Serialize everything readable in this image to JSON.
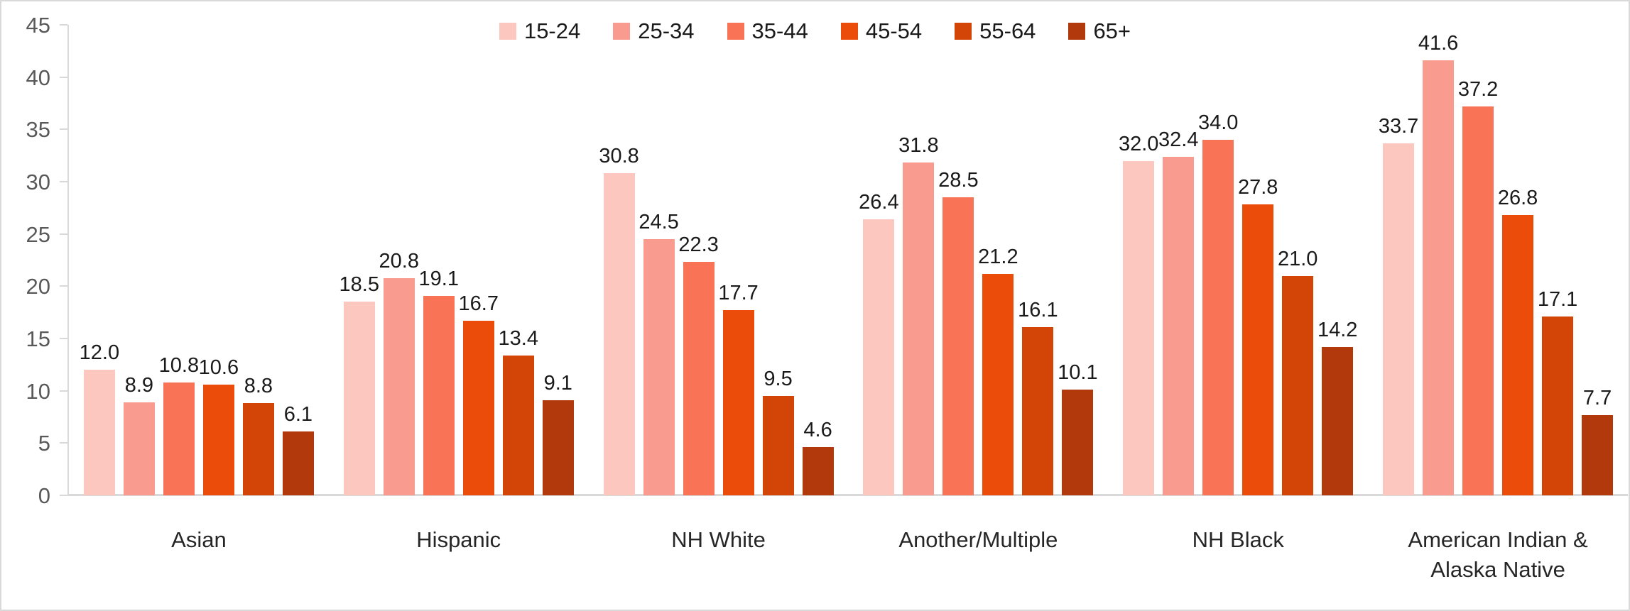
{
  "chart_data": {
    "type": "bar",
    "title": "",
    "xlabel": "",
    "ylabel": "",
    "categories": [
      "Asian",
      "Hispanic",
      "NH White",
      "Another/Multiple",
      "NH Black",
      "American Indian & Alaska Native"
    ],
    "series": [
      {
        "name": "15-24",
        "color": "#FBC7BE",
        "values": [
          12.0,
          18.5,
          30.8,
          26.4,
          32.0,
          33.7
        ]
      },
      {
        "name": "25-34",
        "color": "#F99C8F",
        "values": [
          8.9,
          20.8,
          24.5,
          31.8,
          32.4,
          41.6
        ]
      },
      {
        "name": "35-44",
        "color": "#F97357",
        "values": [
          10.8,
          19.1,
          22.3,
          28.5,
          34.0,
          37.2
        ]
      },
      {
        "name": "45-54",
        "color": "#EC4C09",
        "values": [
          10.6,
          16.7,
          17.7,
          21.2,
          27.8,
          26.8
        ]
      },
      {
        "name": "55-64",
        "color": "#D24507",
        "values": [
          8.8,
          13.4,
          9.5,
          16.1,
          21.0,
          17.1
        ]
      },
      {
        "name": "65+",
        "color": "#B1390B",
        "values": [
          6.1,
          9.1,
          4.6,
          10.1,
          14.2,
          7.7
        ]
      }
    ],
    "ylim": [
      0,
      45
    ],
    "yticks": [
      0,
      5,
      10,
      15,
      20,
      25,
      30,
      35,
      40,
      45
    ],
    "grid": false,
    "legend_position": "top-center",
    "value_labels": true,
    "value_label_decimals": 1
  },
  "style": {
    "axis_color": "#D9D9D9",
    "tick_label_color": "#595959",
    "value_label_color": "#1A1A1A",
    "category_label_color": "#262626",
    "background": "#FFFFFF"
  }
}
